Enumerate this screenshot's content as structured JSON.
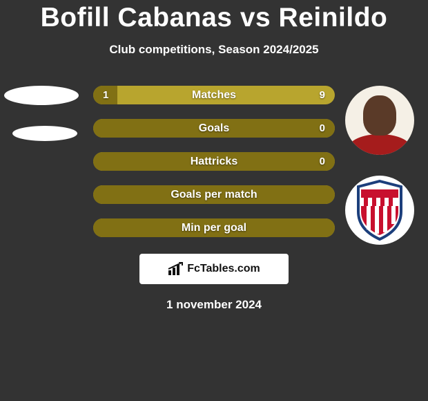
{
  "title": "Bofill Cabanas vs Reinildo",
  "subtitle": "Club competitions, Season 2024/2025",
  "date": "1 november 2024",
  "footer_label": "FcTables.com",
  "colors": {
    "background": "#333333",
    "bar_dark": "#817014",
    "bar_light": "#b8a52e",
    "text": "#ffffff"
  },
  "bars": [
    {
      "label": "Matches",
      "left": "1",
      "right": "9",
      "left_pct": 10,
      "right_pct": 90,
      "show_left": true,
      "show_right": true
    },
    {
      "label": "Goals",
      "left": "",
      "right": "0",
      "left_pct": 100,
      "right_pct": 0,
      "show_left": false,
      "show_right": true
    },
    {
      "label": "Hattricks",
      "left": "",
      "right": "0",
      "left_pct": 100,
      "right_pct": 0,
      "show_left": false,
      "show_right": true
    },
    {
      "label": "Goals per match",
      "left": "",
      "right": "",
      "left_pct": 100,
      "right_pct": 0,
      "show_left": false,
      "show_right": false
    },
    {
      "label": "Min per goal",
      "left": "",
      "right": "",
      "left_pct": 100,
      "right_pct": 0,
      "show_left": false,
      "show_right": false
    }
  ]
}
